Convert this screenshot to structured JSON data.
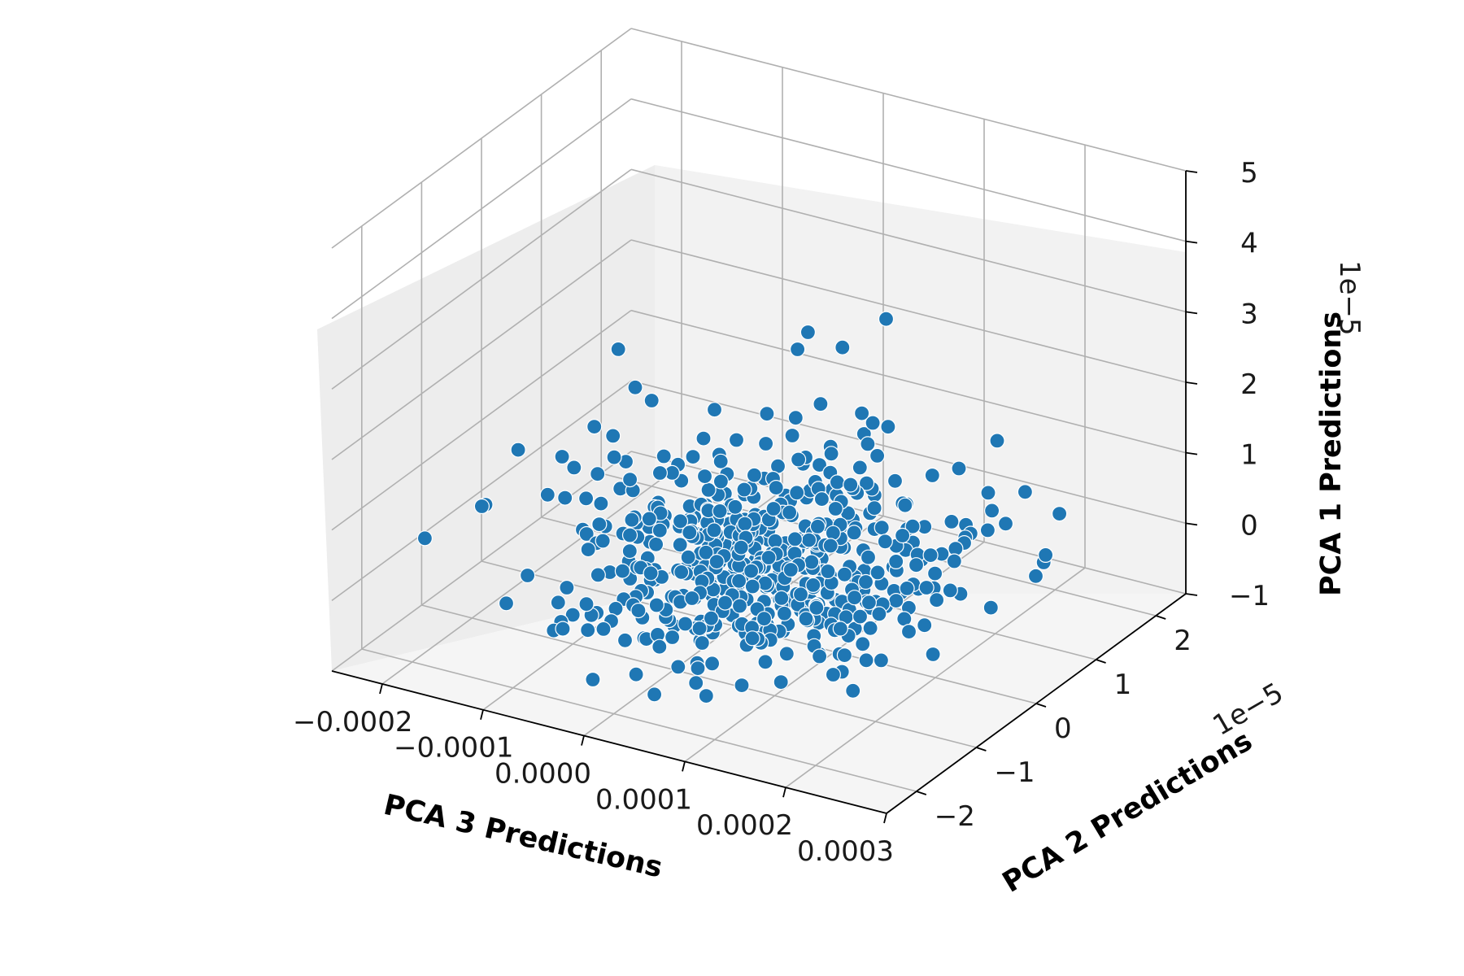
{
  "chart_data": {
    "type": "scatter3d",
    "title": "",
    "xlabel": "PCA 3 Predictions",
    "ylabel": "PCA 2 Predictions",
    "zlabel": "PCA 1 Predictions",
    "xticks": [
      -0.0002,
      -0.0001,
      0.0,
      0.0001,
      0.0002,
      0.0003
    ],
    "xtick_labels": [
      "−0.0002",
      "−0.0001",
      "0.0000",
      "0.0001",
      "0.0002",
      "0.0003"
    ],
    "yticks": [
      -2,
      -1,
      0,
      1,
      2
    ],
    "ytick_labels": [
      "−2",
      "−1",
      "0",
      "1",
      "2"
    ],
    "y_offset_label": "1e−5",
    "zticks": [
      -1,
      0,
      1,
      2,
      3,
      4,
      5
    ],
    "ztick_labels": [
      "−1",
      "0",
      "1",
      "2",
      "3",
      "4",
      "5"
    ],
    "z_offset_label": "1e−5",
    "xlim": [
      -0.00025,
      0.0003
    ],
    "ylim": [
      -2.5,
      2.5
    ],
    "zlim": [
      -1,
      5
    ],
    "grid": true,
    "marker_color": "#1f77b4",
    "point_count": 560,
    "sample_points_xyz": [
      [
        5e-05,
        0.4,
        3.1
      ],
      [
        8e-05,
        1.2,
        2.9
      ],
      [
        1e-05,
        0.9,
        2.4
      ],
      [
        -0.00015,
        0.6,
        2.0
      ],
      [
        0.0002,
        1.5,
        0.7
      ],
      [
        0.00025,
        1.0,
        0.3
      ],
      [
        -0.00022,
        -0.5,
        0.2
      ],
      [
        0.00024,
        1.4,
        0.6
      ]
    ]
  }
}
